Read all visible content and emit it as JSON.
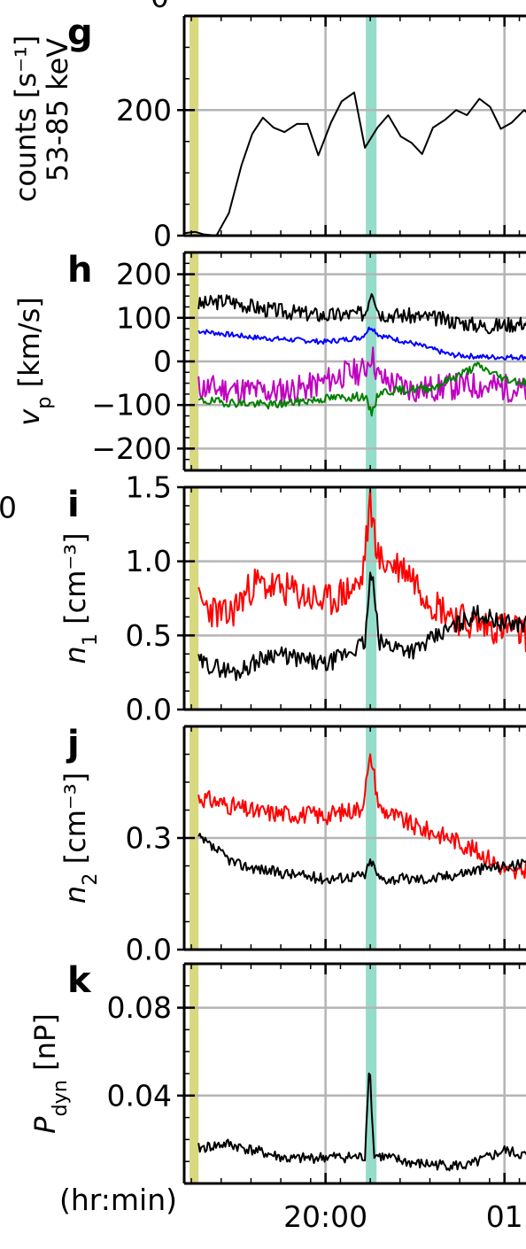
{
  "figure": {
    "time_axis": {
      "label": "(hr:min)",
      "tick_labels": [
        {
          "label": "20:00",
          "t": 0
        },
        {
          "label": "01",
          "t": 1
        }
      ],
      "range": [
        -0.79,
        1.15
      ]
    },
    "bands": [
      {
        "color": "#d8d87e",
        "t_range": [
          -0.76,
          -0.71
        ]
      },
      {
        "color": "#96dccb",
        "t_range": [
          0.225,
          0.285
        ]
      }
    ]
  },
  "chart_data": [
    {
      "type": "line",
      "panel_letter": "g",
      "ylabel_top": "counts [s⁻¹]",
      "ylabel_bottom": "53-85 keV",
      "ylim": [
        0,
        350
      ],
      "yticks": [
        {
          "v": 0,
          "label": "0"
        },
        {
          "v": 200,
          "label": "200"
        }
      ],
      "grid_y": [
        200
      ],
      "series": [
        {
          "color": "#000000",
          "x": [
            -0.79,
            -0.73,
            -0.68,
            -0.61,
            -0.54,
            -0.47,
            -0.41,
            -0.35,
            -0.29,
            -0.23,
            -0.16,
            -0.1,
            -0.04,
            0.03,
            0.09,
            0.16,
            0.22,
            0.29,
            0.35,
            0.42,
            0.48,
            0.54,
            0.6,
            0.67,
            0.73,
            0.79,
            0.86,
            0.92,
            0.98,
            1.04,
            1.11,
            1.15
          ],
          "y": [
            4,
            6,
            2,
            0,
            36,
            112,
            162,
            188,
            172,
            165,
            178,
            178,
            128,
            180,
            214,
            228,
            140,
            172,
            192,
            158,
            148,
            130,
            172,
            185,
            200,
            192,
            218,
            205,
            170,
            180,
            200,
            190
          ]
        }
      ]
    },
    {
      "type": "line",
      "panel_letter": "h",
      "ylabel": "v_p [km/s]",
      "ylim": [
        -250,
        250
      ],
      "yticks": [
        {
          "v": 200,
          "label": "200"
        },
        {
          "v": 100,
          "label": "100"
        },
        {
          "v": 0,
          "label": "0"
        },
        {
          "v": -100,
          "label": "−100"
        },
        {
          "v": -200,
          "label": "−200"
        }
      ],
      "grid_y": [
        200,
        100,
        0,
        -100,
        -200
      ],
      "series": [
        {
          "color": "#000000",
          "base": [
            [
              -0.71,
              130
            ],
            [
              -0.55,
              140
            ],
            [
              -0.35,
              120
            ],
            [
              0.0,
              105
            ],
            [
              0.22,
              110
            ],
            [
              0.26,
              170
            ],
            [
              0.3,
              110
            ],
            [
              0.6,
              100
            ],
            [
              0.9,
              80
            ],
            [
              1.15,
              90
            ]
          ],
          "noise": 18,
          "seed": 3
        },
        {
          "color": "#0000ff",
          "base": [
            [
              -0.71,
              70
            ],
            [
              -0.4,
              55
            ],
            [
              0.0,
              45
            ],
            [
              0.2,
              55
            ],
            [
              0.255,
              80
            ],
            [
              0.3,
              60
            ],
            [
              0.5,
              40
            ],
            [
              0.7,
              15
            ],
            [
              0.9,
              10
            ],
            [
              1.15,
              10
            ]
          ],
          "noise": 6,
          "seed": 7
        },
        {
          "color": "#c000c0",
          "base": [
            [
              -0.71,
              -60
            ],
            [
              -0.3,
              -70
            ],
            [
              -0.1,
              -60
            ],
            [
              0.1,
              -30
            ],
            [
              0.22,
              -20
            ],
            [
              0.255,
              20
            ],
            [
              0.3,
              -40
            ],
            [
              0.5,
              -65
            ],
            [
              0.8,
              -55
            ],
            [
              1.0,
              -60
            ],
            [
              1.15,
              -70
            ]
          ],
          "noise": 32,
          "seed": 11
        },
        {
          "color": "#008000",
          "base": [
            [
              -0.71,
              -90
            ],
            [
              -0.3,
              -100
            ],
            [
              0.0,
              -85
            ],
            [
              0.22,
              -80
            ],
            [
              0.255,
              -120
            ],
            [
              0.3,
              -70
            ],
            [
              0.6,
              -60
            ],
            [
              0.85,
              -10
            ],
            [
              1.0,
              -40
            ],
            [
              1.15,
              -50
            ]
          ],
          "noise": 10,
          "seed": 19
        }
      ]
    },
    {
      "type": "line",
      "panel_letter": "i",
      "ylabel": "n_1 [cm⁻³]",
      "ylim": [
        0,
        1.5
      ],
      "yticks": [
        {
          "v": 1.5,
          "label": "1.5"
        },
        {
          "v": 1.0,
          "label": "1.0"
        },
        {
          "v": 0.5,
          "label": "0.5"
        },
        {
          "v": 0.0,
          "label": "0.0"
        }
      ],
      "grid_y": [
        1.0,
        0.5
      ],
      "series": [
        {
          "color": "#ff0000",
          "base": [
            [
              -0.71,
              0.72
            ],
            [
              -0.55,
              0.62
            ],
            [
              -0.4,
              0.85
            ],
            [
              -0.2,
              0.8
            ],
            [
              0.0,
              0.72
            ],
            [
              0.2,
              0.85
            ],
            [
              0.25,
              1.38
            ],
            [
              0.3,
              1.0
            ],
            [
              0.45,
              0.95
            ],
            [
              0.6,
              0.72
            ],
            [
              0.8,
              0.58
            ],
            [
              1.0,
              0.55
            ],
            [
              1.15,
              0.5
            ]
          ],
          "noise": 0.12,
          "seed": 23
        },
        {
          "color": "#000000",
          "base": [
            [
              -0.71,
              0.32
            ],
            [
              -0.5,
              0.25
            ],
            [
              -0.3,
              0.38
            ],
            [
              0.0,
              0.3
            ],
            [
              0.22,
              0.45
            ],
            [
              0.255,
              0.95
            ],
            [
              0.3,
              0.45
            ],
            [
              0.5,
              0.4
            ],
            [
              0.7,
              0.55
            ],
            [
              0.85,
              0.65
            ],
            [
              1.0,
              0.58
            ],
            [
              1.15,
              0.58
            ]
          ],
          "noise": 0.06,
          "seed": 29
        }
      ]
    },
    {
      "type": "line",
      "panel_letter": "j",
      "ylabel": "n_2 [cm⁻³]",
      "ylim": [
        0,
        0.6
      ],
      "yticks": [
        {
          "v": 0.3,
          "label": "0.3"
        },
        {
          "v": 0.0,
          "label": "0.0"
        }
      ],
      "grid_y": [
        0.3
      ],
      "series": [
        {
          "color": "#ff0000",
          "base": [
            [
              -0.71,
              0.41
            ],
            [
              -0.4,
              0.37
            ],
            [
              0.0,
              0.36
            ],
            [
              0.2,
              0.38
            ],
            [
              0.255,
              0.52
            ],
            [
              0.3,
              0.38
            ],
            [
              0.5,
              0.33
            ],
            [
              0.7,
              0.3
            ],
            [
              0.9,
              0.25
            ],
            [
              1.05,
              0.2
            ],
            [
              1.15,
              0.22
            ]
          ],
          "noise": 0.025,
          "seed": 31
        },
        {
          "color": "#000000",
          "base": [
            [
              -0.71,
              0.3
            ],
            [
              -0.5,
              0.23
            ],
            [
              -0.3,
              0.21
            ],
            [
              0.0,
              0.19
            ],
            [
              0.22,
              0.2
            ],
            [
              0.255,
              0.24
            ],
            [
              0.3,
              0.19
            ],
            [
              0.6,
              0.19
            ],
            [
              0.9,
              0.22
            ],
            [
              1.15,
              0.23
            ]
          ],
          "noise": 0.015,
          "seed": 37
        }
      ]
    },
    {
      "type": "line",
      "panel_letter": "k",
      "ylabel": "P_dyn [nP]",
      "ylim": [
        0,
        0.1
      ],
      "yticks": [
        {
          "v": 0.08,
          "label": "0.08"
        },
        {
          "v": 0.04,
          "label": "0.04"
        }
      ],
      "grid_y": [
        0.08,
        0.04
      ],
      "series": [
        {
          "color": "#000000",
          "base": [
            [
              -0.71,
              0.016
            ],
            [
              -0.55,
              0.018
            ],
            [
              -0.4,
              0.015
            ],
            [
              -0.2,
              0.011
            ],
            [
              0.0,
              0.012
            ],
            [
              0.22,
              0.012
            ],
            [
              0.245,
              0.057
            ],
            [
              0.27,
              0.013
            ],
            [
              0.5,
              0.009
            ],
            [
              0.8,
              0.008
            ],
            [
              1.0,
              0.015
            ],
            [
              1.15,
              0.012
            ]
          ],
          "noise": 0.0025,
          "seed": 41
        }
      ]
    }
  ],
  "clipped_left_labels": [
    {
      "text": "0"
    },
    {
      "text": "0"
    }
  ]
}
